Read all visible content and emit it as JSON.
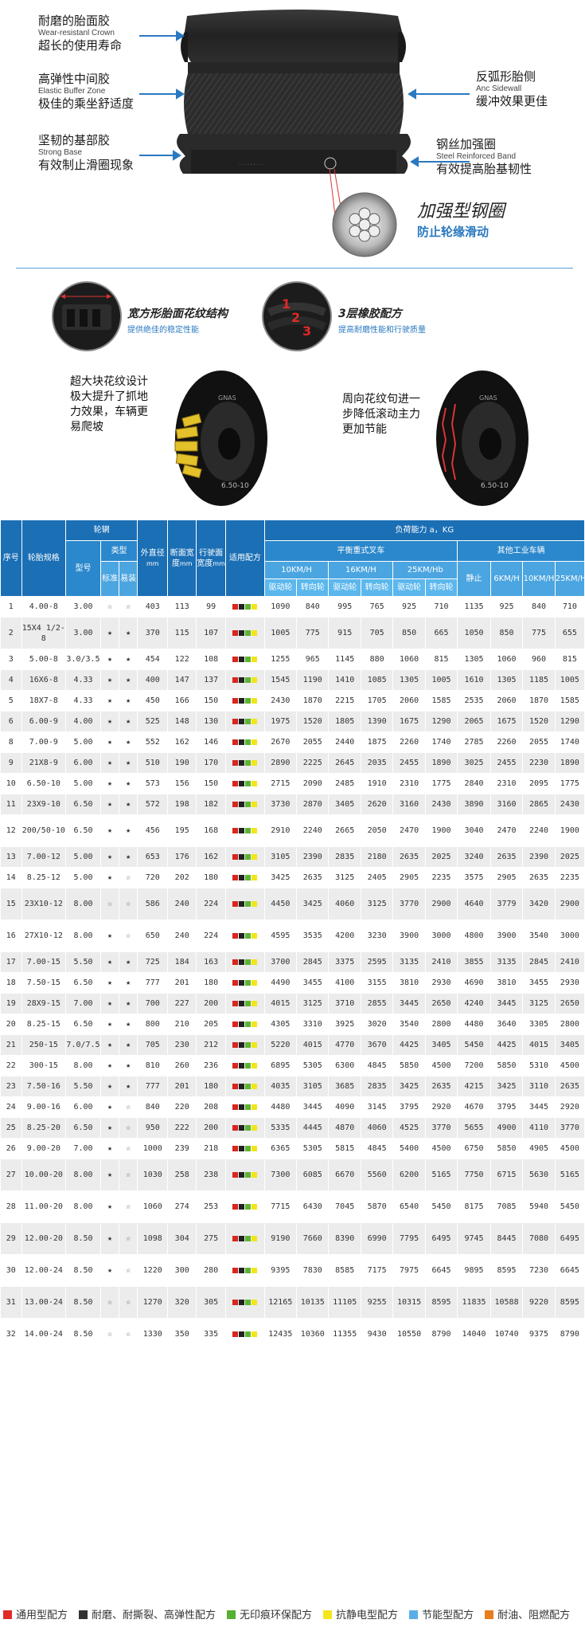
{
  "hero": {
    "labels_left": [
      {
        "cn": "耐磨的胎面胶",
        "en": "Wear-resistanl Crown",
        "desc": "超长的使用寿命"
      },
      {
        "cn": "高弹性中间胶",
        "en": "Elastic Buffer Zone",
        "desc": "极佳的乘坐舒适度"
      },
      {
        "cn": "坚韧的基部胶",
        "en": "Strong Base",
        "desc": "有效制止滑圈现象"
      }
    ],
    "labels_right": [
      {
        "cn": "反弧形胎侧",
        "en": "Anc  Sidewall",
        "desc": "缓冲效果更佳"
      },
      {
        "cn": "钢丝加强圈",
        "en": "Steel Reinforced Band",
        "desc": "有效提高胎基韧性"
      }
    ],
    "wire_title": "加强型钢圈",
    "wire_sub": "防止轮缘滑动"
  },
  "features": [
    {
      "title": "宽方形胎面花纹结构",
      "sub": "提供绝佳的稳定性能"
    },
    {
      "title": "3层橡胶配方",
      "sub": "提高耐磨性能和行驶质量",
      "numbers": [
        "1",
        "2",
        "3"
      ]
    }
  ],
  "tread_left_lines": [
    "超大块花纹设计",
    "极大提升了抓地",
    "力效果，车辆更",
    "易爬坡"
  ],
  "tread_right_lines": [
    "周向花纹句进一",
    "步降低滚动主力",
    "更加节能"
  ],
  "tire_brand": "GNAS",
  "tire_size_left": "6.50-10",
  "tire_size_right": "6.50-10",
  "table": {
    "headers": {
      "no": "序号",
      "spec": "轮胎规格",
      "rim": "轮辋",
      "model": "型号",
      "type": "类型",
      "std": "标准",
      "easy": "易装",
      "od": "外直径",
      "od_unit": "mm",
      "width": "断面宽度",
      "width_unit": "mm",
      "tread": "行驶面宽度",
      "tread_unit": "mm",
      "formula": "适用配方",
      "load": "负荷能力 a，KG",
      "forklift": "平衡重式叉车",
      "other": "其他工业车辆",
      "s10": "10KM/H",
      "s16": "16KM/H",
      "s25": "25KM/Hb",
      "drive": "驱动轮",
      "steer": "转向轮",
      "static": "静止",
      "o6": "6KM/H",
      "o10": "10KM/H",
      "o25": "25KM/H"
    },
    "rows": [
      [
        "1",
        "4.00-8",
        "3.00",
        "☆",
        "☆",
        "403",
        "113",
        "99",
        "1090",
        "840",
        "995",
        "765",
        "925",
        "710",
        "1135",
        "925",
        "840",
        "710"
      ],
      [
        "2",
        "15X4 1/2-8",
        "3.00",
        "★",
        "★",
        "370",
        "115",
        "107",
        "1005",
        "775",
        "915",
        "705",
        "850",
        "665",
        "1050",
        "850",
        "775",
        "655"
      ],
      [
        "3",
        "5.00-8",
        "3.0/3.5",
        "★",
        "★",
        "454",
        "122",
        "108",
        "1255",
        "965",
        "1145",
        "880",
        "1060",
        "815",
        "1305",
        "1060",
        "960",
        "815"
      ],
      [
        "4",
        "16X6-8",
        "4.33",
        "★",
        "★",
        "400",
        "147",
        "137",
        "1545",
        "1190",
        "1410",
        "1085",
        "1305",
        "1005",
        "1610",
        "1305",
        "1185",
        "1005"
      ],
      [
        "5",
        "18X7-8",
        "4.33",
        "★",
        "★",
        "450",
        "166",
        "150",
        "2430",
        "1870",
        "2215",
        "1705",
        "2060",
        "1585",
        "2535",
        "2060",
        "1870",
        "1585"
      ],
      [
        "6",
        "6.00-9",
        "4.00",
        "★",
        "★",
        "525",
        "148",
        "130",
        "1975",
        "1520",
        "1805",
        "1390",
        "1675",
        "1290",
        "2065",
        "1675",
        "1520",
        "1290"
      ],
      [
        "8",
        "7.00-9",
        "5.00",
        "★",
        "★",
        "552",
        "162",
        "146",
        "2670",
        "2055",
        "2440",
        "1875",
        "2260",
        "1740",
        "2785",
        "2260",
        "2055",
        "1740"
      ],
      [
        "9",
        "21X8-9",
        "6.00",
        "★",
        "★",
        "510",
        "190",
        "170",
        "2890",
        "2225",
        "2645",
        "2035",
        "2455",
        "1890",
        "3025",
        "2455",
        "2230",
        "1890"
      ],
      [
        "10",
        "6.50-10",
        "5.00",
        "★",
        "★",
        "573",
        "156",
        "150",
        "2715",
        "2090",
        "2485",
        "1910",
        "2310",
        "1775",
        "2840",
        "2310",
        "2095",
        "1775"
      ],
      [
        "11",
        "23X9-10",
        "6.50",
        "★",
        "★",
        "572",
        "198",
        "182",
        "3730",
        "2870",
        "3405",
        "2620",
        "3160",
        "2430",
        "3890",
        "3160",
        "2865",
        "2430"
      ],
      [
        "12",
        "200/50-10",
        "6.50",
        "★",
        "★",
        "456",
        "195",
        "168",
        "2910",
        "2240",
        "2665",
        "2050",
        "2470",
        "1900",
        "3040",
        "2470",
        "2240",
        "1900"
      ],
      [
        "13",
        "7.00-12",
        "5.00",
        "★",
        "★",
        "653",
        "176",
        "162",
        "3105",
        "2390",
        "2835",
        "2180",
        "2635",
        "2025",
        "3240",
        "2635",
        "2390",
        "2025"
      ],
      [
        "14",
        "8.25-12",
        "5.00",
        "★",
        "☆",
        "720",
        "202",
        "180",
        "3425",
        "2635",
        "3125",
        "2405",
        "2905",
        "2235",
        "3575",
        "2905",
        "2635",
        "2235"
      ],
      [
        "15",
        "23X10-12",
        "8.00",
        "☆",
        "☆",
        "586",
        "240",
        "224",
        "4450",
        "3425",
        "4060",
        "3125",
        "3770",
        "2900",
        "4640",
        "3779",
        "3420",
        "2900"
      ],
      [
        "16",
        "27X10-12",
        "8.00",
        "★",
        "☆",
        "650",
        "240",
        "224",
        "4595",
        "3535",
        "4200",
        "3230",
        "3900",
        "3000",
        "4800",
        "3900",
        "3540",
        "3000"
      ],
      [
        "17",
        "7.00-15",
        "5.50",
        "★",
        "★",
        "725",
        "184",
        "163",
        "3700",
        "2845",
        "3375",
        "2595",
        "3135",
        "2410",
        "3855",
        "3135",
        "2845",
        "2410"
      ],
      [
        "18",
        "7.50-15",
        "6.50",
        "★",
        "★",
        "777",
        "201",
        "180",
        "4490",
        "3455",
        "4100",
        "3155",
        "3810",
        "2930",
        "4690",
        "3810",
        "3455",
        "2930"
      ],
      [
        "19",
        "28X9-15",
        "7.00",
        "★",
        "★",
        "700",
        "227",
        "200",
        "4015",
        "3125",
        "3710",
        "2855",
        "3445",
        "2650",
        "4240",
        "3445",
        "3125",
        "2650"
      ],
      [
        "20",
        "8.25-15",
        "6.50",
        "★",
        "★",
        "800",
        "210",
        "205",
        "4305",
        "3310",
        "3925",
        "3020",
        "3540",
        "2800",
        "4480",
        "3640",
        "3305",
        "2800"
      ],
      [
        "21",
        "250-15",
        "7.0/7.5",
        "★",
        "★",
        "705",
        "230",
        "212",
        "5220",
        "4015",
        "4770",
        "3670",
        "4425",
        "3405",
        "5450",
        "4425",
        "4015",
        "3405"
      ],
      [
        "22",
        "300-15",
        "8.00",
        "★",
        "★",
        "810",
        "260",
        "236",
        "6895",
        "5305",
        "6300",
        "4845",
        "5850",
        "4500",
        "7200",
        "5850",
        "5310",
        "4500"
      ],
      [
        "23",
        "7.50-16",
        "5.50",
        "★",
        "★",
        "777",
        "201",
        "180",
        "4035",
        "3105",
        "3685",
        "2835",
        "3425",
        "2635",
        "4215",
        "3425",
        "3110",
        "2635"
      ],
      [
        "24",
        "9.00-16",
        "6.00",
        "★",
        "☆",
        "840",
        "220",
        "208",
        "4480",
        "3445",
        "4090",
        "3145",
        "3795",
        "2920",
        "4670",
        "3795",
        "3445",
        "2920"
      ],
      [
        "25",
        "8.25-20",
        "6.50",
        "★",
        "☆",
        "950",
        "222",
        "200",
        "5335",
        "4445",
        "4870",
        "4060",
        "4525",
        "3770",
        "5655",
        "4900",
        "4110",
        "3770"
      ],
      [
        "26",
        "9.00-20",
        "7.00",
        "★",
        "☆",
        "1000",
        "239",
        "218",
        "6365",
        "5305",
        "5815",
        "4845",
        "5400",
        "4500",
        "6750",
        "5850",
        "4905",
        "4500"
      ],
      [
        "27",
        "10.00-20",
        "8.00",
        "★",
        "☆",
        "1030",
        "258",
        "238",
        "7300",
        "6085",
        "6670",
        "5560",
        "6200",
        "5165",
        "7750",
        "6715",
        "5630",
        "5165"
      ],
      [
        "28",
        "11.00-20",
        "8.00",
        "★",
        "☆",
        "1060",
        "274",
        "253",
        "7715",
        "6430",
        "7045",
        "5870",
        "6540",
        "5450",
        "8175",
        "7085",
        "5940",
        "5450"
      ],
      [
        "29",
        "12.00-20",
        "8.50",
        "★",
        "☆",
        "1098",
        "304",
        "275",
        "9190",
        "7660",
        "8390",
        "6990",
        "7795",
        "6495",
        "9745",
        "8445",
        "7080",
        "6495"
      ],
      [
        "30",
        "12.00-24",
        "8.50",
        "★",
        "☆",
        "1220",
        "300",
        "280",
        "9395",
        "7830",
        "8585",
        "7175",
        "7975",
        "6645",
        "9895",
        "8595",
        "7230",
        "6645"
      ],
      [
        "31",
        "13.00-24",
        "8.50",
        "☆",
        "☆",
        "1270",
        "320",
        "305",
        "12165",
        "10135",
        "11105",
        "9255",
        "10315",
        "8595",
        "11835",
        "10588",
        "9220",
        "8595"
      ],
      [
        "32",
        "14.00-24",
        "8.50",
        "☆",
        "☆",
        "1330",
        "350",
        "335",
        "12435",
        "10360",
        "11355",
        "9430",
        "10550",
        "8790",
        "14040",
        "10740",
        "9375",
        "8790"
      ]
    ],
    "formula_colors": [
      "#d7261e",
      "#222222",
      "#5cb531",
      "#f2e51b"
    ]
  },
  "legend": [
    {
      "color": "#e02a27",
      "label": "通用型配方"
    },
    {
      "color": "#333333",
      "label": "耐磨、耐撕裂、高弹性配方"
    },
    {
      "color": "#56b031",
      "label": "无印痕环保配方"
    },
    {
      "color": "#f4e61c",
      "label": "抗静电型配方"
    },
    {
      "color": "#5aaee6",
      "label": "节能型配方"
    },
    {
      "color": "#e87d1e",
      "label": "耐油、阻燃配方"
    }
  ]
}
